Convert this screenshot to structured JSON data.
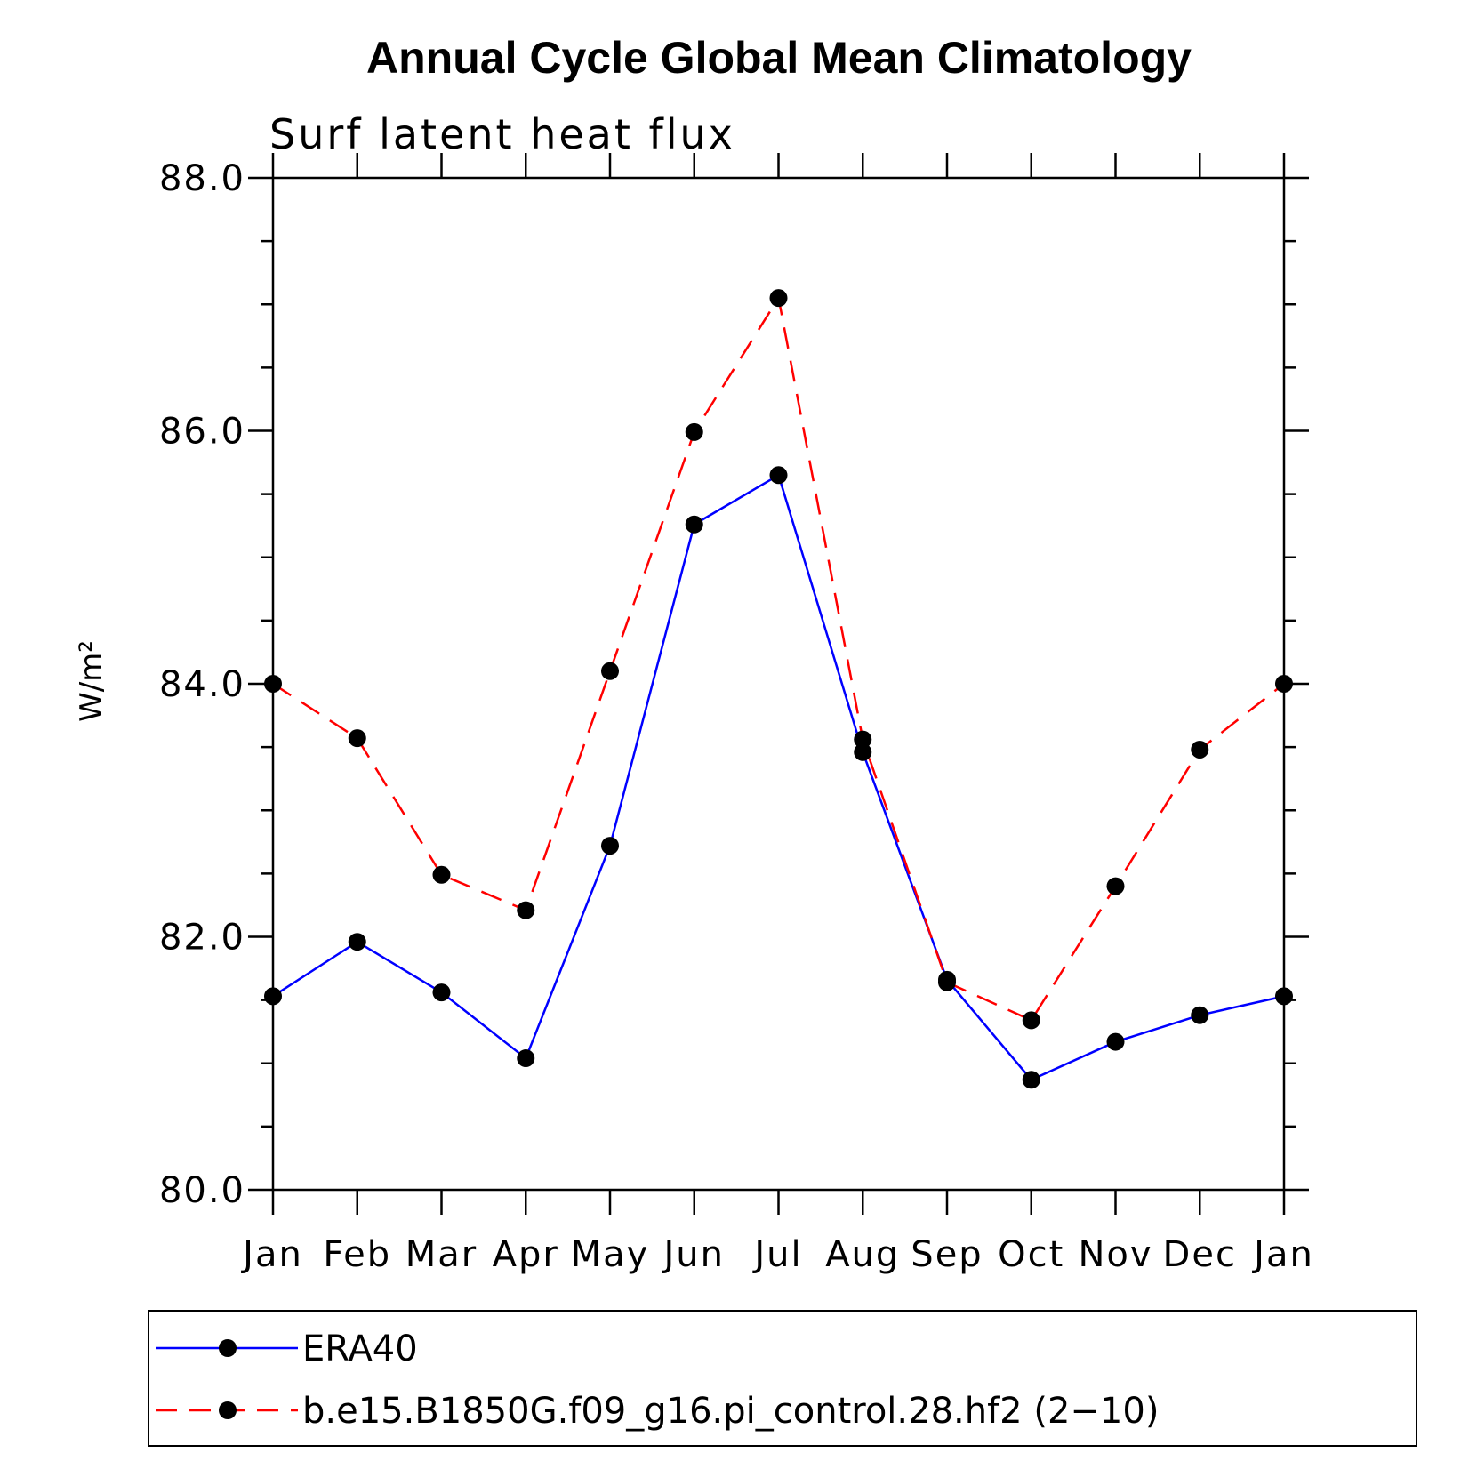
{
  "chart_data": {
    "type": "line",
    "title": "Annual Cycle Global Mean Climatology",
    "subtitle": "Surf latent heat flux",
    "ylabel": "W/m²",
    "xlabel": "",
    "categories": [
      "Jan",
      "Feb",
      "Mar",
      "Apr",
      "May",
      "Jun",
      "Jul",
      "Aug",
      "Sep",
      "Oct",
      "Nov",
      "Dec",
      "Jan"
    ],
    "ylim": [
      80.0,
      88.0
    ],
    "yticks": [
      "80.0",
      "82.0",
      "84.0",
      "86.0",
      "88.0"
    ],
    "series": [
      {
        "name": "ERA40",
        "color": "#0000ff",
        "dash": "solid",
        "values": [
          81.53,
          81.96,
          81.56,
          81.04,
          82.72,
          85.26,
          85.65,
          83.46,
          81.66,
          80.87,
          81.17,
          81.38,
          81.53
        ]
      },
      {
        "name": "b.e15.B1850G.f09_g16.pi_control.28.hf2 (2−10)",
        "color": "#ff0000",
        "dash": "dashed",
        "values": [
          84.0,
          83.57,
          82.49,
          82.21,
          84.1,
          85.99,
          87.05,
          83.56,
          81.64,
          81.34,
          82.4,
          83.48,
          84.0
        ]
      }
    ],
    "legend_position": "bottom"
  }
}
